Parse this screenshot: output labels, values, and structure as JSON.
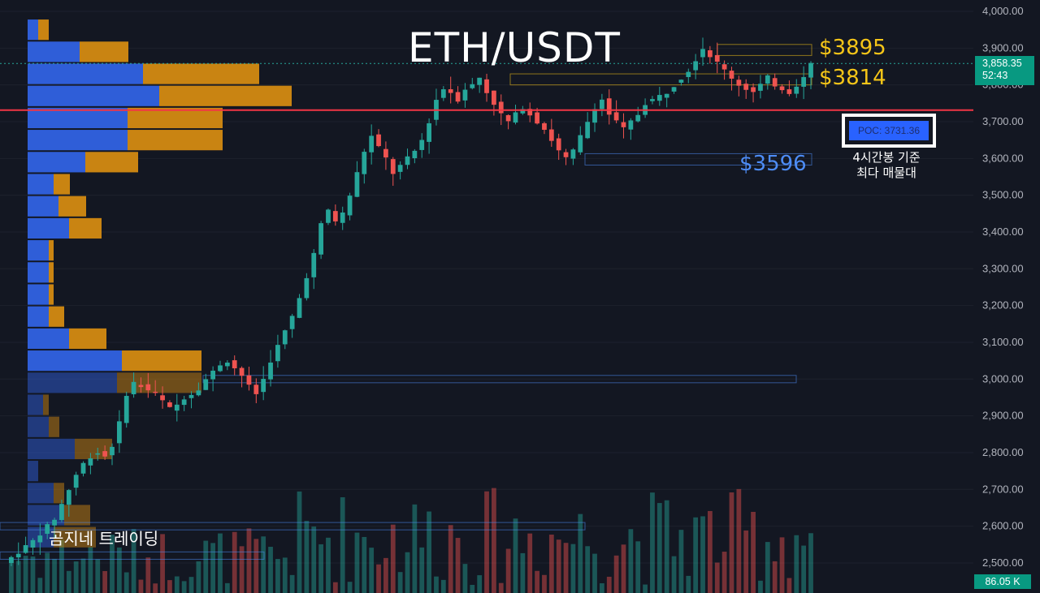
{
  "title": "ETH/USDT",
  "levels": [
    {
      "label": "$3895",
      "color": "#f5c518"
    },
    {
      "label": "$3814",
      "color": "#f5c518"
    },
    {
      "label": "$3596",
      "color": "#4d8cf5"
    }
  ],
  "poc": {
    "label": "POC: 3731.36",
    "note_line1": "4시간봉 기준",
    "note_line2": "최다 매물대"
  },
  "price_tag": {
    "price": "3,858.35",
    "countdown": "52:43"
  },
  "volume_tag": "86.05 K",
  "brand": "곰지네 트레이딩",
  "colors": {
    "up": "#26a69a",
    "down": "#ef5350",
    "vp_buy": "#2f5ed8",
    "vp_sell": "#c98412",
    "poc_line": "#f23645"
  },
  "chart_data": {
    "type": "candlestick",
    "title": "ETH/USDT",
    "timeframe_note": "4시간봉",
    "y_ticks": [
      "4,000.00",
      "3,900.00",
      "3,800.00",
      "3,700.00",
      "3,600.00",
      "3,500.00",
      "3,400.00",
      "3,300.00",
      "3,200.00",
      "3,100.00",
      "3,000.00",
      "2,900.00",
      "2,800.00",
      "2,700.00",
      "2,600.00",
      "2,500.00"
    ],
    "ylim": [
      2470,
      4000
    ],
    "last_price": 3858.35,
    "poc_price": 3731.36,
    "horizontal_levels": [
      3895,
      3814,
      3596
    ],
    "close_path": [
      2500,
      2515,
      2530,
      2545,
      2560,
      2580,
      2600,
      2620,
      2660,
      2700,
      2740,
      2770,
      2790,
      2800,
      2790,
      2820,
      2880,
      2960,
      2990,
      2980,
      2970,
      2960,
      2940,
      2920,
      2930,
      2950,
      2960,
      2975,
      3000,
      3020,
      3040,
      3050,
      3030,
      3010,
      2980,
      2960,
      3000,
      3050,
      3090,
      3130,
      3170,
      3220,
      3280,
      3340,
      3420,
      3460,
      3430,
      3450,
      3500,
      3560,
      3620,
      3660,
      3630,
      3600,
      3560,
      3580,
      3600,
      3620,
      3650,
      3700,
      3760,
      3790,
      3780,
      3760,
      3790,
      3800,
      3820,
      3780,
      3750,
      3720,
      3700,
      3720,
      3740,
      3720,
      3700,
      3680,
      3650,
      3620,
      3600,
      3620,
      3660,
      3700,
      3740,
      3760,
      3720,
      3700,
      3680,
      3700,
      3720,
      3750,
      3760,
      3770,
      3780,
      3800,
      3820,
      3840,
      3870,
      3900,
      3880,
      3860,
      3840,
      3820,
      3800,
      3790,
      3780,
      3800,
      3820,
      3800,
      3790,
      3780,
      3800,
      3820,
      3858
    ],
    "volume_profile": [
      {
        "price": 3950,
        "buy": 13,
        "sell": 13
      },
      {
        "price": 3890,
        "buy": 64,
        "sell": 60
      },
      {
        "price": 3830,
        "buy": 142,
        "sell": 143
      },
      {
        "price": 3770,
        "buy": 162,
        "sell": 163
      },
      {
        "price": 3710,
        "buy": 123,
        "sell": 117
      },
      {
        "price": 3650,
        "buy": 123,
        "sell": 117
      },
      {
        "price": 3590,
        "buy": 71,
        "sell": 65
      },
      {
        "price": 3530,
        "buy": 32,
        "sell": 20
      },
      {
        "price": 3470,
        "buy": 38,
        "sell": 34
      },
      {
        "price": 3410,
        "buy": 51,
        "sell": 40
      },
      {
        "price": 3350,
        "buy": 26,
        "sell": 6
      },
      {
        "price": 3290,
        "buy": 26,
        "sell": 6
      },
      {
        "price": 3230,
        "buy": 26,
        "sell": 6
      },
      {
        "price": 3170,
        "buy": 26,
        "sell": 19
      },
      {
        "price": 3110,
        "buy": 51,
        "sell": 46
      },
      {
        "price": 3050,
        "buy": 116,
        "sell": 98
      },
      {
        "price": 2990,
        "buy": 110,
        "sell": 104
      },
      {
        "price": 2930,
        "buy": 19,
        "sell": 7
      },
      {
        "price": 2870,
        "buy": 26,
        "sell": 13
      },
      {
        "price": 2810,
        "buy": 58,
        "sell": 46
      },
      {
        "price": 2750,
        "buy": 13,
        "sell": 0
      },
      {
        "price": 2690,
        "buy": 32,
        "sell": 13
      },
      {
        "price": 2630,
        "buy": 45,
        "sell": 32
      },
      {
        "price": 2570,
        "buy": 32,
        "sell": 52
      }
    ],
    "zones": [
      {
        "from": 3880,
        "to": 3910,
        "color": "#f5c518",
        "x_start_frac": 0.883
      },
      {
        "from": 3800,
        "to": 3830,
        "color": "#f5c518",
        "x_start_frac": 0.628
      },
      {
        "from": 3582,
        "to": 3613,
        "color": "#4d8cf5",
        "x_start_frac": 0.72
      },
      {
        "from": 2990,
        "to": 3010,
        "color": "#4d8cf5",
        "x_start_frac": 0.25
      },
      {
        "from": 2590,
        "to": 2610,
        "color": "#4d8cf5",
        "x_start_frac": 0.0
      },
      {
        "from": 2510,
        "to": 2530,
        "color": "#4d8cf5",
        "x_start_frac": 0.0
      }
    ]
  }
}
